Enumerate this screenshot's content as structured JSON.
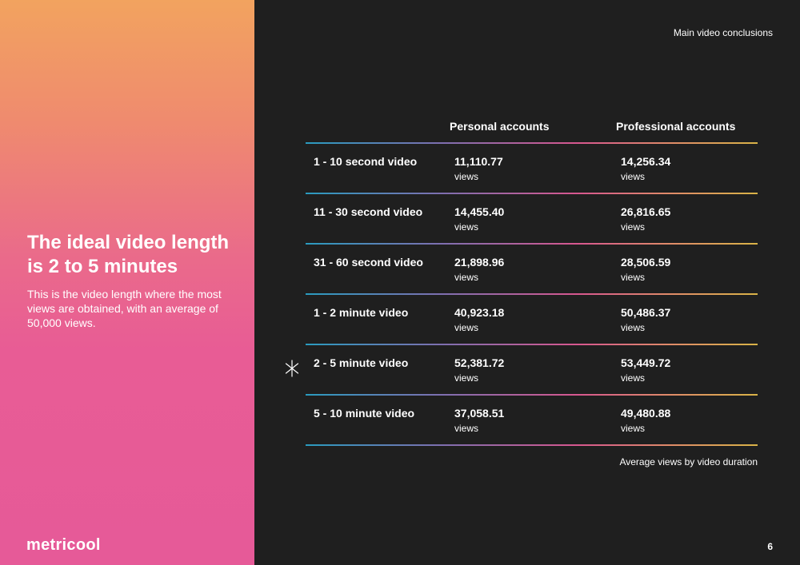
{
  "left": {
    "headline": "The ideal video length is 2 to 5 minutes",
    "subtext": "This is the video length where the most views are obtained, with an average of 50,000 views.",
    "logo": "metricool"
  },
  "header": {
    "section_label": "Main video conclusions"
  },
  "table": {
    "columns": [
      "Personal accounts",
      "Professional accounts"
    ],
    "unit": "views",
    "rows": [
      {
        "label": "1 - 10 second video",
        "personal": "11,110.77",
        "professional": "14,256.34"
      },
      {
        "label": "11 - 30 second video",
        "personal": "14,455.40",
        "professional": "26,816.65"
      },
      {
        "label": "31 - 60 second video",
        "personal": "21,898.96",
        "professional": "28,506.59"
      },
      {
        "label": "1 - 2 minute video",
        "personal": "40,923.18",
        "professional": "50,486.37"
      },
      {
        "label": "2 - 5 minute video",
        "personal": "52,381.72",
        "professional": "53,449.72"
      },
      {
        "label": "5 - 10 minute video",
        "personal": "37,058.51",
        "professional": "49,480.88"
      }
    ],
    "caption": "Average views by video duration",
    "highlight_icon": "sparkle-icon"
  },
  "footer": {
    "page_number": "6"
  },
  "colors": {
    "accent_start": "#f2a35f",
    "accent_end": "#e65a98",
    "background": "#1f1f1f"
  }
}
